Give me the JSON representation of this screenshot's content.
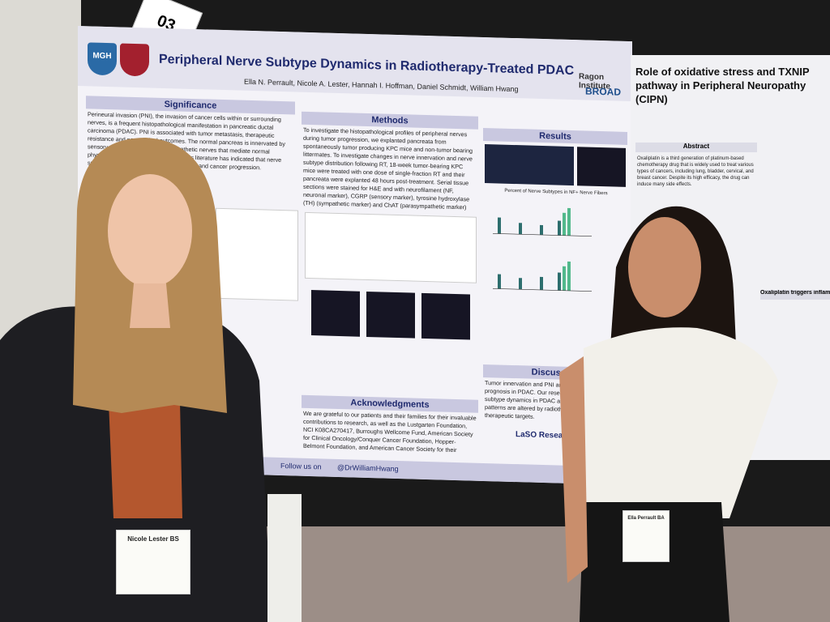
{
  "poster_number": "03",
  "poster": {
    "logo": "MGH",
    "title": "Peripheral Nerve Subtype Dynamics in Radiotherapy-Treated PDAC",
    "authors": "Ella N. Perrault, Nicole A. Lester, Hannah I. Hoffman, Daniel Schmidt, William Hwang",
    "institutes": [
      "Ragon Institute",
      "BROAD"
    ],
    "sections": {
      "significance": {
        "heading": "Significance",
        "text": "Perineural invasion (PNI), the invasion of cancer cells within or surrounding nerves, is a frequent histopathological manifestation in pancreatic ductal carcinoma (PDAC). PNI is associated with tumor metastasis, therapeutic resistance and poor clinical outcomes. The normal pancreas is innervated by sensory, sympathetic and parasympathetic nerves that mediate normal physiological functions. Notably, previous literature has indicated that nerve subtypes impact tumor microenvironments and cancer progression."
      },
      "methods": {
        "heading": "Methods",
        "text": "To investigate the histopathological profiles of peripheral nerves during tumor progression, we explanted pancreata from spontaneously tumor producing KPC mice and non-tumor bearing littermates. To investigate changes in nerve innervation and nerve subtype distribution following RT, 18-week tumor-bearing KPC mice were treated with one dose of single-fraction RT and their pancreata were explanted 48 hours post-treatment. Serial tissue sections were stained for H&E and with neurofilament (NF, neuronal marker), CGRP (sensory marker), tyrosine hydroxylase (TH) (sympathetic marker) and ChAT (parasympathetic marker) and imaged using TissueFAXS Plus brightfield and epifluorescence slide scanner."
      },
      "results": {
        "heading": "Results",
        "chart_title": "Percent of Nerve Subtypes in NF+ Nerve Fibers"
      },
      "acknowledgments": {
        "heading": "Acknowledgments",
        "text": "We are grateful to our patients and their families for their invaluable contributions to research, as well as the Lustgarten Foundation, NCI K08CA270417, Burroughs Wellcome Fund, American Society for Clinical Oncology/Conquer Cancer Foundation, Hopper-Belmont Foundation, and American Cancer Society for their generous support of our work."
      },
      "discussion": {
        "heading": "Discussion",
        "text": "Tumor innervation and PNI are associated with poor prognosis in PDAC. Our research will identify nerve subtype dynamics in PDAC and how these innervation patterns are altered by radiotherapy to inform therapeutic targets."
      }
    },
    "footer": {
      "follow": "Follow us on",
      "handle": "@DrWilliamHwang",
      "lab": "LaSO Research"
    }
  },
  "poster2": {
    "title": "Role of oxidative stress and TXNIP pathway in Peripheral Neuropathy (CIPN)",
    "abstract_heading": "Abstract",
    "abstract_text": "Oxaliplatin is a third generation of platinum-based chemotherapy drug that is widely used to treat various types of cancers, including lung, bladder, cervical, and breast cancer. Despite its high efficacy, the drug can induce many side effects.",
    "subheading": "Oxaliplatin triggers inflammatory"
  },
  "badges": [
    "Nicole Lester BS",
    "Ella Perrault BA"
  ]
}
